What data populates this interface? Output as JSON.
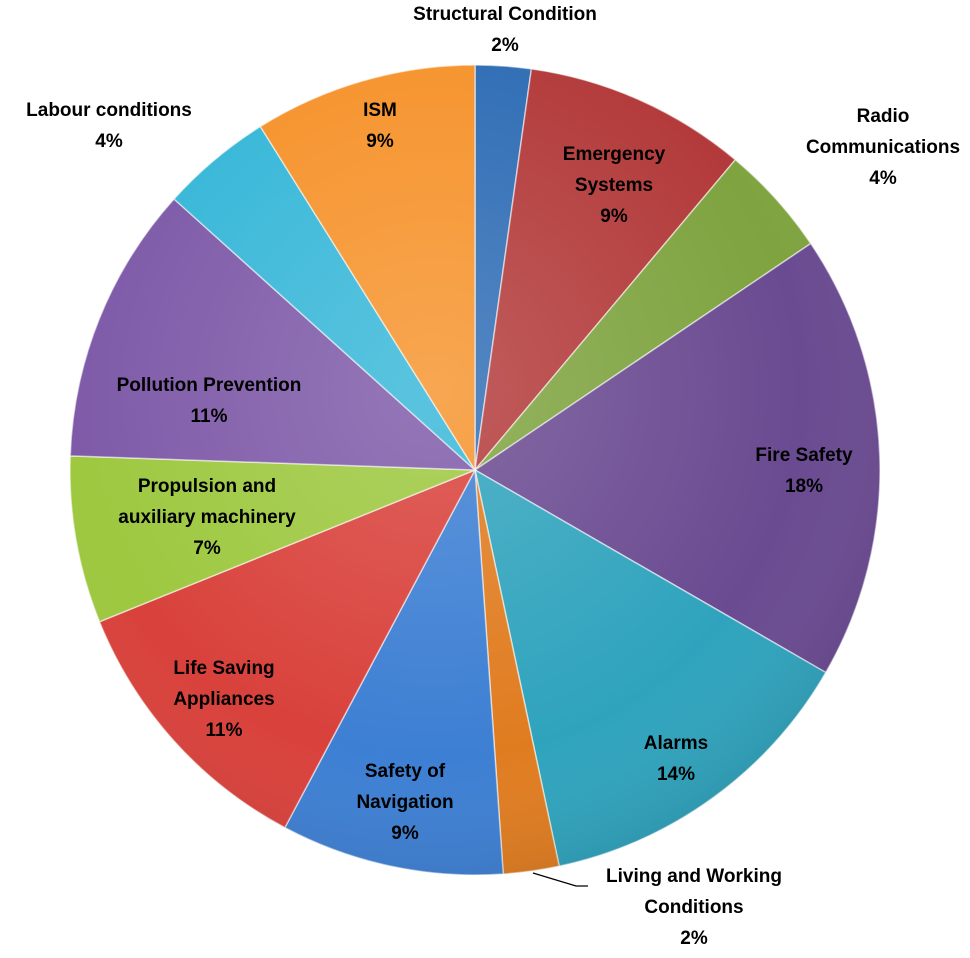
{
  "chart_data": {
    "type": "pie",
    "title": "",
    "slices": [
      {
        "name": "Structural Condition",
        "percent_label": "2%",
        "value": 2.3,
        "color": "#2f6db5"
      },
      {
        "name": "Emergency Systems",
        "percent_label": "9%",
        "value": 9.2,
        "color": "#b33a3a"
      },
      {
        "name": "Radio Communications",
        "percent_label": "4%",
        "value": 4.6,
        "color": "#7ea33f"
      },
      {
        "name": "Fire Safety",
        "percent_label": "18%",
        "value": 18.4,
        "color": "#6a4a91"
      },
      {
        "name": "Alarms",
        "percent_label": "14%",
        "value": 13.8,
        "color": "#2fa3bd"
      },
      {
        "name": "Living and Working Conditions",
        "percent_label": "2%",
        "value": 2.3,
        "color": "#e07c20"
      },
      {
        "name": "Safety of Navigation",
        "percent_label": "9%",
        "value": 9.2,
        "color": "#3d7fd3"
      },
      {
        "name": "Life Saving Appliances",
        "percent_label": "11%",
        "value": 11.5,
        "color": "#d9413b"
      },
      {
        "name": "Propulsion and auxiliary machinery",
        "percent_label": "7%",
        "value": 6.9,
        "color": "#9dc83f"
      },
      {
        "name": "Pollution Prevention",
        "percent_label": "11%",
        "value": 11.5,
        "color": "#7e5aa8"
      },
      {
        "name": "Labour conditions",
        "percent_label": "4%",
        "value": 4.6,
        "color": "#37b7d8"
      },
      {
        "name": "ISM",
        "percent_label": "9%",
        "value": 9.2,
        "color": "#f6932c"
      }
    ],
    "legend": "none",
    "data_labels": "category name and percentage"
  }
}
